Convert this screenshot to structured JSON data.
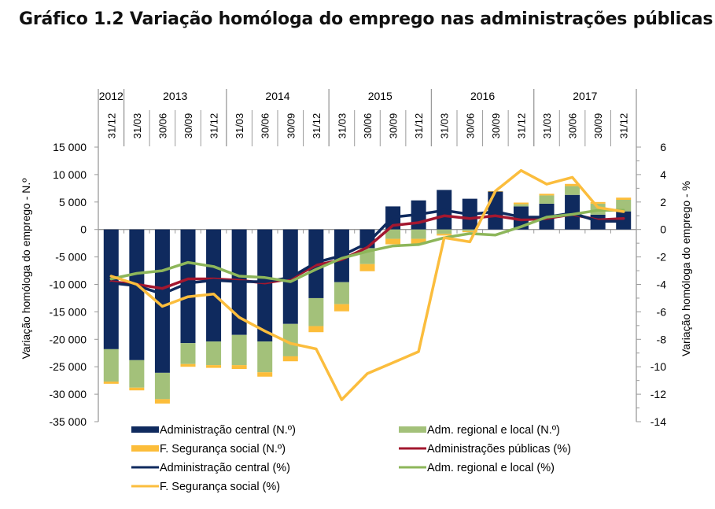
{
  "title": "Gráfico 1.2 Variação homóloga do emprego nas administrações públicas",
  "chart_data": {
    "type": "bar",
    "title": "Gráfico 1.2 Variação homóloga do emprego nas administrações públicas",
    "ylabel": "Variação homóloga do emprego - N.º",
    "y2label": "Variação homóloga do emprego - %",
    "ylim": [
      -35000,
      15000
    ],
    "y2lim": [
      -14,
      6
    ],
    "yticks": [
      15000,
      10000,
      5000,
      0,
      -5000,
      -10000,
      -15000,
      -20000,
      -25000,
      -30000,
      -35000
    ],
    "ytick_labels": [
      "15 000",
      "10 000",
      "5 000",
      "0",
      "-5 000",
      "-10 000",
      "-15 000",
      "-20 000",
      "-25 000",
      "-30 000",
      "-35 000"
    ],
    "y2ticks": [
      6,
      4,
      2,
      0,
      -2,
      -4,
      -6,
      -8,
      -10,
      -12,
      -14
    ],
    "y2tick_labels": [
      "6",
      "4",
      "2",
      "0",
      "-2",
      "-4",
      "-6",
      "-8",
      "-10",
      "-12",
      "-14"
    ],
    "years": [
      {
        "label": "2012",
        "count": 1
      },
      {
        "label": "2013",
        "count": 4
      },
      {
        "label": "2014",
        "count": 4
      },
      {
        "label": "2015",
        "count": 4
      },
      {
        "label": "2016",
        "count": 4
      },
      {
        "label": "2017",
        "count": 4
      }
    ],
    "categories": [
      "31/12",
      "31/03",
      "30/06",
      "30/09",
      "31/12",
      "31/03",
      "30/06",
      "30/09",
      "31/12",
      "31/03",
      "30/06",
      "30/09",
      "31/12",
      "31/03",
      "30/06",
      "30/09",
      "31/12",
      "31/03",
      "30/06",
      "30/09",
      "31/12"
    ],
    "bar_series": [
      {
        "name": "Administração central (N.º)",
        "color": "#0f2a5e",
        "values": [
          -21800,
          -23800,
          -26100,
          -20700,
          -20400,
          -19200,
          -20400,
          -17200,
          -12500,
          -9600,
          -3400,
          4200,
          5300,
          7200,
          5600,
          6900,
          4200,
          4700,
          6300,
          2700,
          3300
        ]
      },
      {
        "name": "Adm. regional e local (N.º)",
        "color": "#a3c17a",
        "values": [
          -5900,
          -5000,
          -4800,
          -3800,
          -4300,
          -5500,
          -5600,
          -5900,
          -5100,
          -4000,
          -2900,
          -1700,
          -1700,
          -800,
          -300,
          0,
          400,
          1500,
          1600,
          2000,
          2100
        ]
      },
      {
        "name": "F. Segurança social  (N.º)",
        "color": "#fcbd3a",
        "values": [
          -400,
          -500,
          -800,
          -500,
          -500,
          -700,
          -800,
          -900,
          -1100,
          -1300,
          -1300,
          -1000,
          -1000,
          -300,
          -200,
          100,
          300,
          300,
          400,
          300,
          400
        ]
      }
    ],
    "line_series": [
      {
        "name": "Administrações públicas (%)",
        "color": "#a3172f",
        "values": [
          -3.8,
          -4.0,
          -4.3,
          -3.6,
          -3.6,
          -3.7,
          -3.9,
          -3.6,
          -2.6,
          -2.2,
          -1.3,
          0.3,
          0.5,
          1.0,
          0.8,
          1.0,
          0.7,
          0.8,
          1.1,
          0.7,
          0.8
        ]
      },
      {
        "name": "Administração central  (%)",
        "color": "#0f2a5e",
        "values": [
          -3.9,
          -4.1,
          -4.7,
          -3.9,
          -3.7,
          -3.8,
          -3.8,
          -3.5,
          -2.4,
          -1.9,
          -1.0,
          0.9,
          1.1,
          1.4,
          1.1,
          1.3,
          0.9,
          0.9,
          1.2,
          0.6,
          0.6
        ]
      },
      {
        "name": "Adm. regional e local (%)",
        "color": "#8db65a",
        "values": [
          -3.6,
          -3.2,
          -3.0,
          -2.4,
          -2.7,
          -3.4,
          -3.5,
          -3.8,
          -2.9,
          -2.1,
          -1.6,
          -1.2,
          -1.1,
          -0.6,
          -0.3,
          -0.4,
          0.2,
          0.9,
          1.1,
          1.4,
          1.4
        ]
      },
      {
        "name": "F. Segurança social  (%)",
        "color": "#fbbd3d",
        "values": [
          -3.4,
          -4.0,
          -5.6,
          -4.9,
          -4.7,
          -6.4,
          -7.4,
          -8.3,
          -8.7,
          -12.4,
          -10.5,
          -9.7,
          -8.9,
          -0.6,
          -0.9,
          2.8,
          4.3,
          3.3,
          3.8,
          1.6,
          1.3
        ]
      }
    ],
    "legend": [
      {
        "label": "Administração central (N.º)",
        "type": "bar",
        "color": "#0f2a5e"
      },
      {
        "label": "Adm. regional e local (N.º)",
        "type": "bar",
        "color": "#a3c17a"
      },
      {
        "label": "F. Segurança social  (N.º)",
        "type": "bar",
        "color": "#fcbd3a"
      },
      {
        "label": "Administrações públicas (%)",
        "type": "line",
        "color": "#a3172f"
      },
      {
        "label": "Administração central  (%)",
        "type": "line",
        "color": "#0f2a5e"
      },
      {
        "label": "Adm. regional e local (%)",
        "type": "line",
        "color": "#8db65a"
      },
      {
        "label": "F. Segurança social  (%)",
        "type": "line",
        "color": "#fbbd3d"
      }
    ],
    "legend_position": "bottom",
    "grid": false
  }
}
